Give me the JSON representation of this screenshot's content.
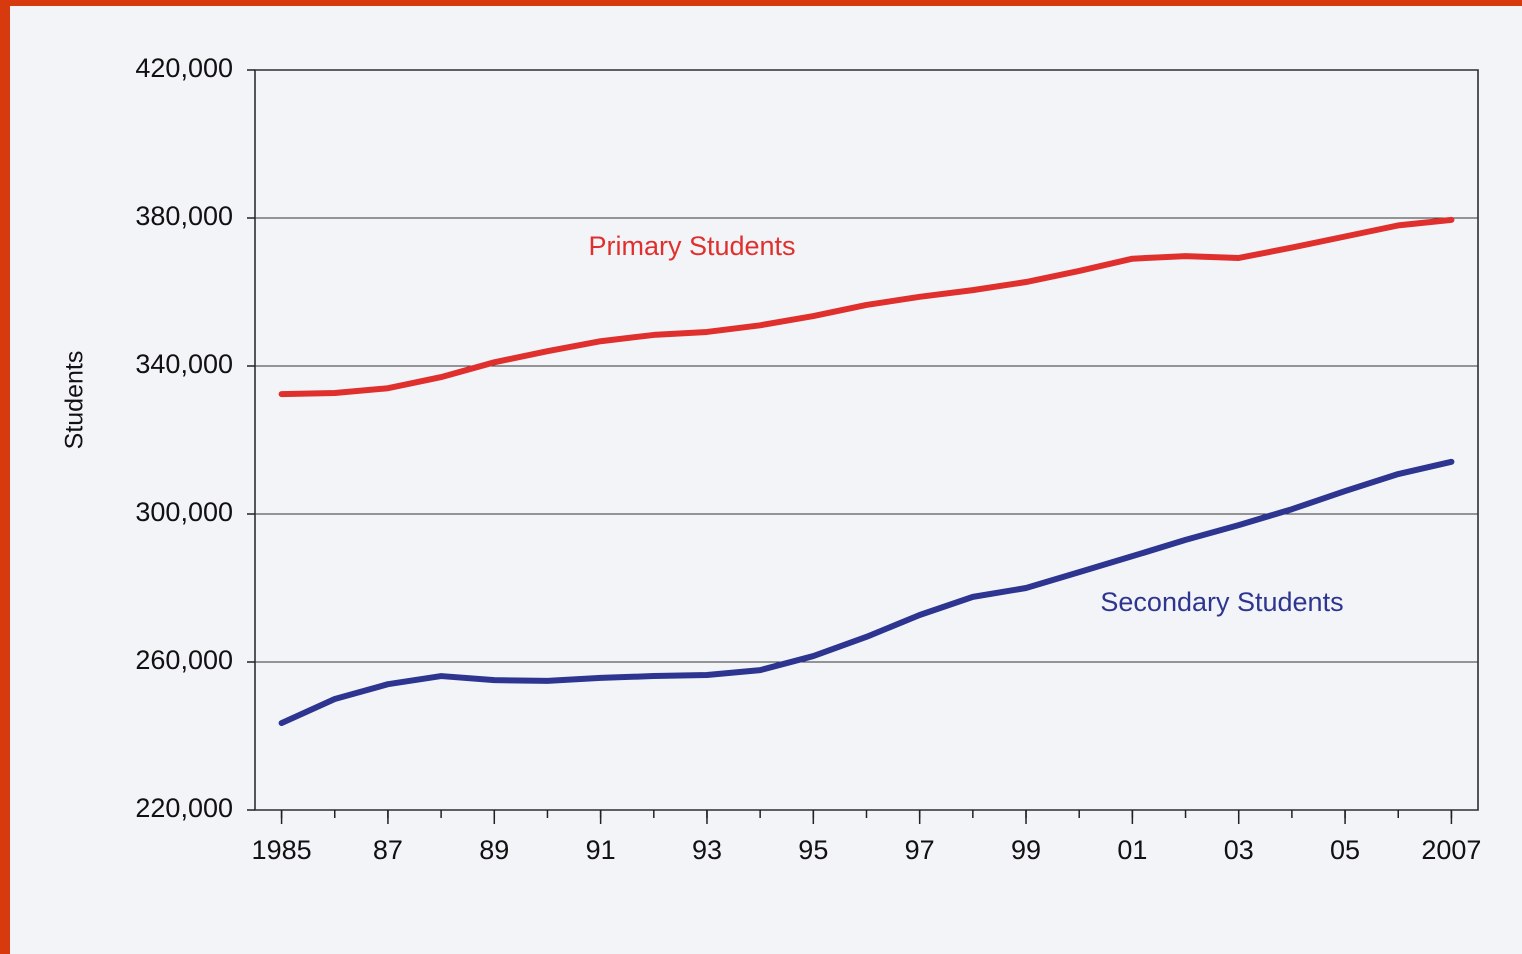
{
  "chart_data": {
    "type": "line",
    "y_label": "Students",
    "x": [
      1985,
      1986,
      1987,
      1988,
      1989,
      1990,
      1991,
      1992,
      1993,
      1994,
      1995,
      1996,
      1997,
      1998,
      1999,
      2000,
      2001,
      2002,
      2003,
      2004,
      2005,
      2006,
      2007
    ],
    "series": [
      {
        "name": "Primary Students",
        "color": "#e0302e",
        "values": [
          332400,
          332700,
          334000,
          337000,
          341000,
          344000,
          346700,
          348400,
          349200,
          351000,
          353500,
          356500,
          358700,
          360500,
          362700,
          365700,
          369000,
          369700,
          369200,
          372000,
          375000,
          378000,
          379500
        ]
      },
      {
        "name": "Secondary Students",
        "color": "#2d3590",
        "values": [
          243500,
          250000,
          254000,
          256200,
          255100,
          254900,
          255700,
          256200,
          256500,
          257800,
          261600,
          266800,
          272700,
          277600,
          280000,
          284300,
          288600,
          293000,
          297000,
          301300,
          306200,
          310800,
          314100
        ]
      }
    ],
    "xlim": [
      1984.5,
      2007.5
    ],
    "xticks": [
      {
        "value": 1985,
        "label": "1985"
      },
      {
        "value": 1987,
        "label": "87"
      },
      {
        "value": 1989,
        "label": "89"
      },
      {
        "value": 1991,
        "label": "91"
      },
      {
        "value": 1993,
        "label": "93"
      },
      {
        "value": 1995,
        "label": "95"
      },
      {
        "value": 1997,
        "label": "97"
      },
      {
        "value": 1999,
        "label": "99"
      },
      {
        "value": 2001,
        "label": "01"
      },
      {
        "value": 2003,
        "label": "03"
      },
      {
        "value": 2005,
        "label": "05"
      },
      {
        "value": 2007,
        "label": "2007"
      }
    ],
    "ylim": [
      220000,
      420000
    ],
    "yticks": [
      {
        "value": 220000,
        "label": "220,000"
      },
      {
        "value": 260000,
        "label": "260,000"
      },
      {
        "value": 300000,
        "label": "300,000"
      },
      {
        "value": 340000,
        "label": "340,000"
      },
      {
        "value": 380000,
        "label": "380,000"
      },
      {
        "value": 420000,
        "label": "420,000"
      }
    ],
    "grid": true
  }
}
